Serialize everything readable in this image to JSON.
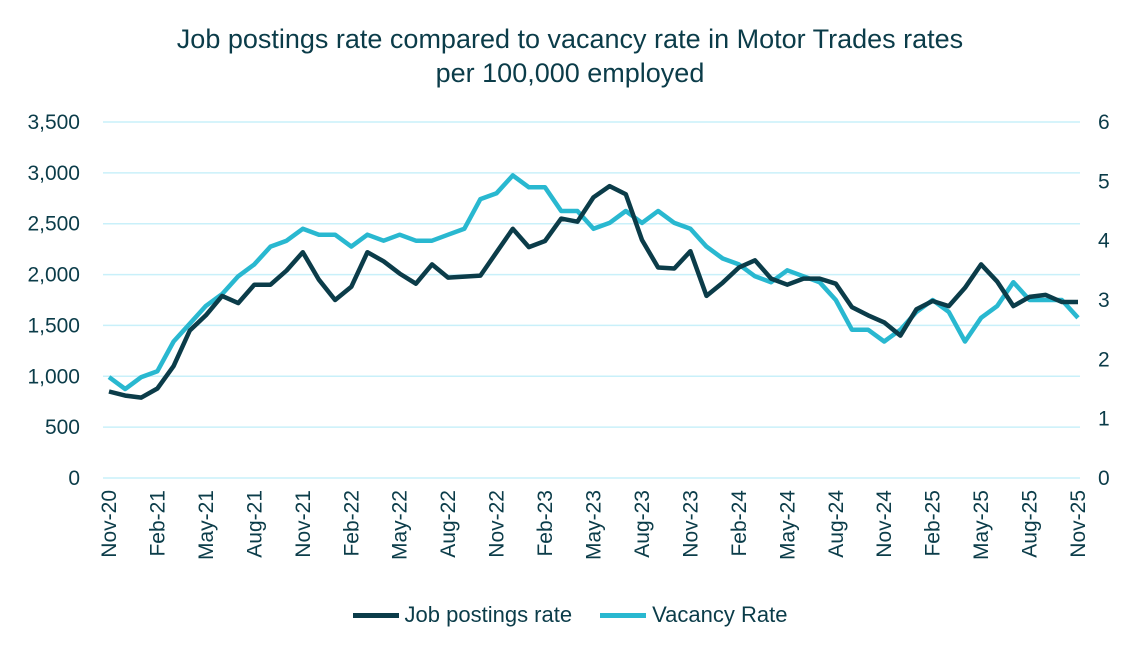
{
  "chart_data": {
    "type": "line",
    "title_lines": [
      "Job postings rate compared to vacancy rate in Motor Trades rates",
      "per 100,000 employed"
    ],
    "x": [
      "Nov-20",
      "Dec-20",
      "Jan-21",
      "Feb-21",
      "Mar-21",
      "Apr-21",
      "May-21",
      "Jun-21",
      "Jul-21",
      "Aug-21",
      "Sep-21",
      "Oct-21",
      "Nov-21",
      "Dec-21",
      "Jan-22",
      "Feb-22",
      "Mar-22",
      "Apr-22",
      "May-22",
      "Jun-22",
      "Jul-22",
      "Aug-22",
      "Sep-22",
      "Oct-22",
      "Nov-22",
      "Dec-22",
      "Jan-23",
      "Feb-23",
      "Mar-23",
      "Apr-23",
      "May-23",
      "Jun-23",
      "Jul-23",
      "Aug-23",
      "Sep-23",
      "Oct-23",
      "Nov-23",
      "Dec-23",
      "Jan-24",
      "Feb-24",
      "Mar-24",
      "Apr-24",
      "May-24",
      "Jun-24",
      "Jul-24",
      "Aug-24",
      "Sep-24",
      "Oct-24",
      "Nov-24",
      "Dec-24",
      "Jan-25",
      "Feb-25",
      "Mar-25",
      "Apr-25",
      "May-25",
      "Jun-25",
      "Jul-25",
      "Aug-25",
      "Sep-25",
      "Oct-25",
      "Nov-25"
    ],
    "x_tick_labels": [
      "Nov-20",
      "Feb-21",
      "May-21",
      "Aug-21",
      "Nov-21",
      "Feb-22",
      "May-22",
      "Aug-22",
      "Nov-22",
      "Feb-23",
      "May-23",
      "Aug-23",
      "Nov-23",
      "Feb-24",
      "May-24",
      "Aug-24",
      "Nov-24",
      "Feb-25",
      "May-25",
      "Aug-25",
      "Nov-25"
    ],
    "y_left": {
      "ylim": [
        0,
        3500
      ],
      "ticks": [
        "0",
        "500",
        "1,000",
        "1,500",
        "2,000",
        "2,500",
        "3,000",
        "3,500"
      ]
    },
    "y_right": {
      "ylim": [
        0,
        6
      ],
      "ticks": [
        "0",
        "1",
        "2",
        "3",
        "4",
        "5",
        "6"
      ]
    },
    "grid": true,
    "legend_position": "bottom",
    "series": [
      {
        "name": "Job postings rate",
        "axis": "left",
        "color": "#0b3c49",
        "values": [
          850,
          810,
          790,
          880,
          1100,
          1450,
          1600,
          1790,
          1720,
          1900,
          1900,
          2040,
          2220,
          1950,
          1750,
          1880,
          2220,
          2130,
          2010,
          1910,
          2100,
          1970,
          1980,
          1990,
          2220,
          2450,
          2270,
          2330,
          2550,
          2520,
          2760,
          2870,
          2790,
          2340,
          2070,
          2060,
          2230,
          1790,
          1920,
          2070,
          2140,
          1960,
          1900,
          1960,
          1960,
          1910,
          1680,
          1600,
          1530,
          1400,
          1660,
          1740,
          1690,
          1870,
          2100,
          1930,
          1690,
          1780,
          1800,
          1730,
          1730
        ]
      },
      {
        "name": "Vacancy Rate",
        "axis": "right",
        "color": "#29b8d0",
        "values": [
          1.7,
          1.5,
          1.7,
          1.8,
          2.3,
          2.6,
          2.9,
          3.1,
          3.4,
          3.6,
          3.9,
          4.0,
          4.2,
          4.1,
          4.1,
          3.9,
          4.1,
          4.0,
          4.1,
          4.0,
          4.0,
          4.1,
          4.2,
          4.7,
          4.8,
          5.1,
          4.9,
          4.9,
          4.5,
          4.5,
          4.2,
          4.3,
          4.5,
          4.3,
          4.5,
          4.3,
          4.2,
          3.9,
          3.7,
          3.6,
          3.4,
          3.3,
          3.5,
          3.4,
          3.3,
          3.0,
          2.5,
          2.5,
          2.3,
          2.5,
          2.8,
          3.0,
          2.8,
          2.3,
          2.7,
          2.9,
          3.3,
          3.0,
          3.0,
          3.0,
          2.7
        ]
      }
    ],
    "gridline_color": "#c9f0fa"
  }
}
